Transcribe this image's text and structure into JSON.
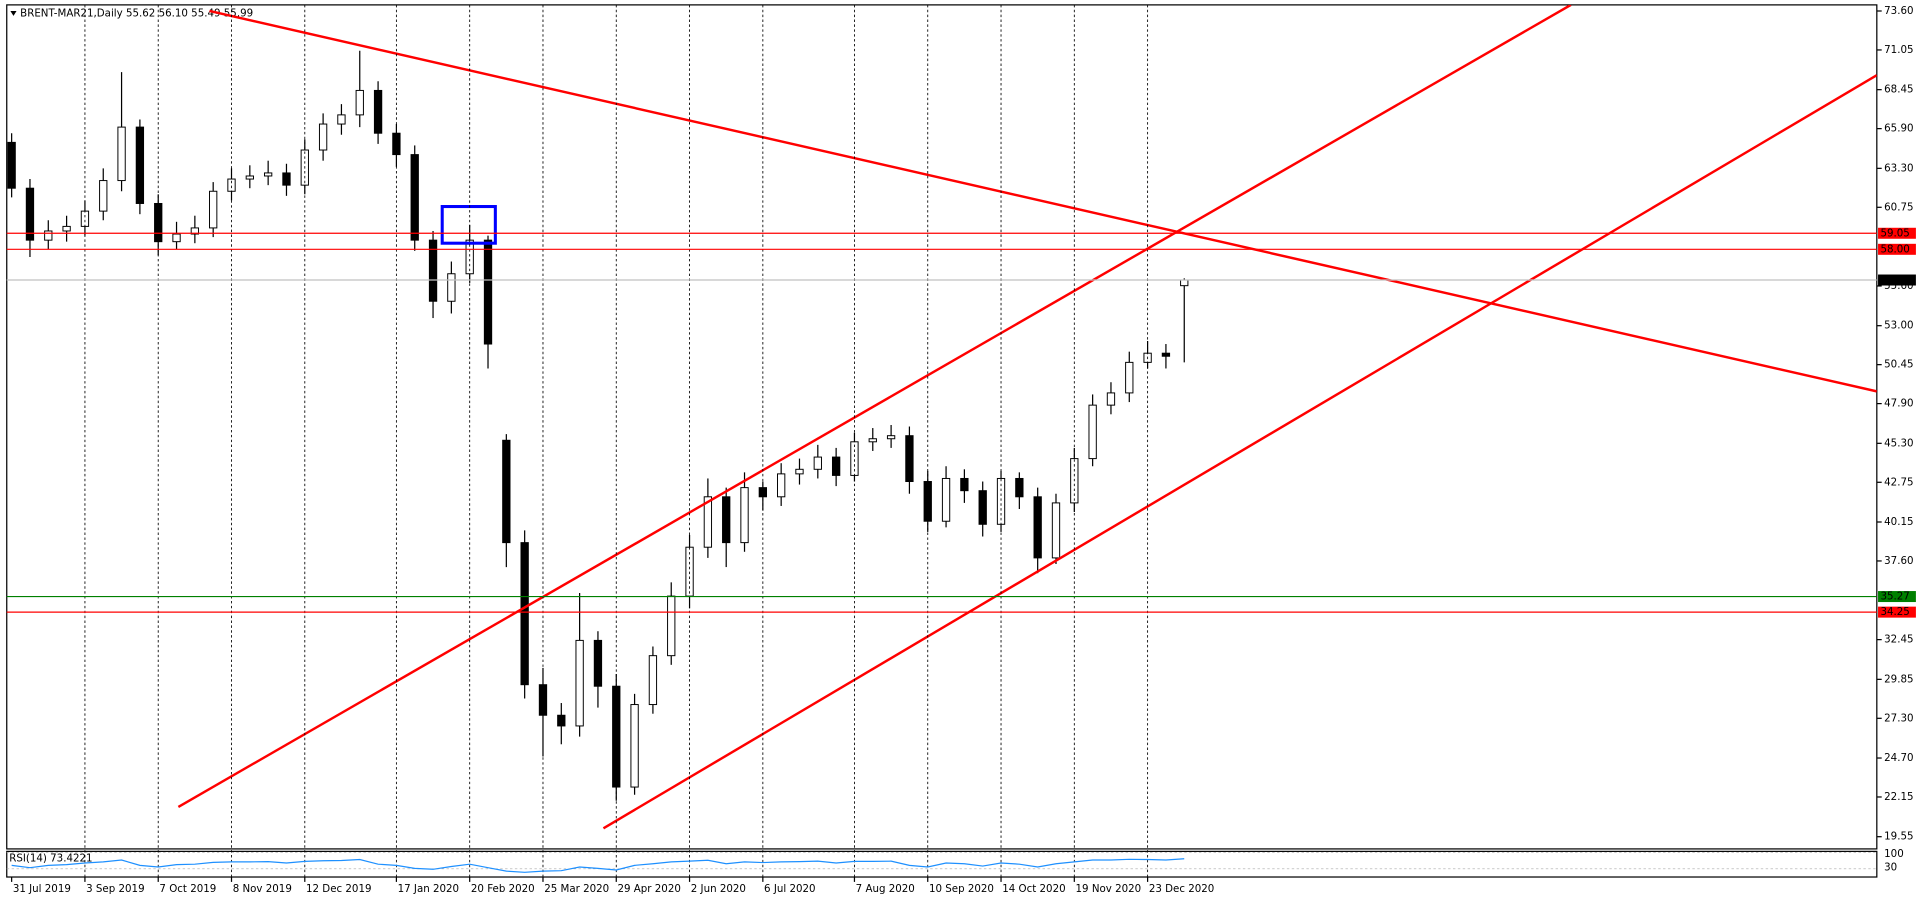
{
  "chart_data": {
    "type": "candlestick",
    "title": "BRENT-MAR21,Daily  55.62 56.10 55.49 55.99",
    "categories": [
      "31 Jul 2019",
      null,
      null,
      null,
      "3 Sep 2019",
      null,
      null,
      null,
      "7 Oct 2019",
      null,
      null,
      null,
      "8 Nov 2019",
      null,
      null,
      null,
      "12 Dec 2019",
      null,
      null,
      null,
      null,
      "17 Jan 2020",
      null,
      null,
      null,
      "20 Feb 2020",
      null,
      null,
      null,
      "25 Mar 2020",
      null,
      null,
      null,
      "29 Apr 2020",
      null,
      null,
      null,
      "2 Jun 2020",
      null,
      null,
      null,
      "6 Jul 2020",
      null,
      null,
      null,
      null,
      "7 Aug 2020",
      null,
      null,
      null,
      "10 Sep 2020",
      null,
      null,
      null,
      "14 Oct 2020",
      null,
      null,
      null,
      "19 Nov 2020",
      null,
      null,
      null,
      "23 Dec 2020",
      null,
      null
    ],
    "open": [
      65.0,
      62.0,
      58.6,
      59.2,
      59.5,
      60.5,
      62.5,
      66.0,
      61.0,
      58.5,
      59.0,
      59.4,
      61.8,
      62.6,
      62.8,
      63.0,
      62.2,
      64.5,
      66.2,
      66.8,
      68.4,
      65.6,
      64.2,
      58.6,
      54.6,
      56.4,
      58.6,
      45.5,
      38.8,
      29.5,
      27.5,
      26.8,
      32.4,
      29.4,
      22.8,
      28.2,
      31.4,
      35.3,
      38.5,
      41.8,
      38.8,
      42.4,
      41.8,
      43.3,
      43.6,
      44.4,
      43.2,
      45.4,
      45.6,
      45.8,
      42.8,
      40.2,
      43.0,
      42.2,
      40.0,
      43.0,
      41.8,
      37.8,
      41.4,
      44.3,
      47.8,
      48.6,
      50.6,
      51.2,
      55.62
    ],
    "high": [
      65.6,
      62.6,
      59.9,
      60.2,
      61.2,
      63.3,
      69.6,
      66.5,
      61.6,
      59.8,
      60.2,
      62.4,
      63.3,
      63.5,
      63.8,
      63.6,
      65.2,
      66.9,
      67.5,
      71.0,
      69.0,
      66.2,
      64.8,
      59.2,
      57.2,
      59.6,
      58.9,
      45.9,
      39.6,
      30.6,
      28.3,
      35.5,
      33.0,
      30.2,
      28.9,
      32.0,
      36.2,
      39.3,
      43.0,
      42.4,
      43.4,
      42.8,
      44.0,
      44.3,
      45.2,
      45.0,
      46.0,
      46.3,
      46.5,
      46.4,
      43.5,
      43.8,
      43.6,
      42.8,
      43.5,
      43.4,
      42.4,
      42.0,
      45.0,
      48.5,
      49.3,
      51.3,
      52.0,
      51.8,
      56.1
    ],
    "low": [
      61.4,
      57.5,
      58.0,
      58.5,
      58.9,
      59.9,
      61.8,
      60.3,
      57.6,
      58.0,
      58.4,
      58.8,
      61.2,
      62.0,
      62.2,
      61.5,
      61.6,
      63.8,
      65.5,
      66.0,
      64.9,
      63.4,
      57.9,
      53.5,
      53.8,
      55.8,
      50.2,
      37.2,
      28.6,
      24.8,
      25.6,
      26.1,
      28.0,
      21.9,
      22.3,
      27.6,
      30.8,
      34.5,
      37.8,
      37.2,
      38.2,
      40.9,
      41.2,
      42.6,
      43.0,
      42.5,
      42.8,
      44.8,
      45.0,
      42.0,
      39.5,
      39.8,
      41.4,
      39.2,
      39.5,
      41.0,
      36.8,
      37.4,
      40.8,
      43.8,
      47.2,
      48.0,
      50.2,
      50.2,
      50.6
    ],
    "close": [
      62.0,
      58.6,
      59.2,
      59.5,
      60.5,
      62.5,
      66.0,
      61.0,
      58.5,
      59.0,
      59.4,
      61.8,
      62.6,
      62.8,
      63.0,
      62.2,
      64.5,
      66.2,
      66.8,
      68.4,
      65.6,
      64.2,
      58.6,
      54.6,
      56.4,
      58.6,
      51.8,
      38.8,
      29.5,
      27.5,
      26.8,
      32.4,
      29.4,
      22.8,
      28.2,
      31.4,
      35.3,
      38.5,
      41.8,
      38.8,
      42.4,
      41.8,
      43.3,
      43.6,
      44.4,
      43.2,
      45.4,
      45.6,
      45.8,
      42.8,
      40.2,
      43.0,
      42.2,
      40.0,
      43.0,
      41.8,
      37.8,
      41.4,
      44.3,
      47.8,
      48.6,
      50.6,
      51.2,
      51.0,
      55.99
    ],
    "color": "#000000",
    "ylim": [
      18.75,
      74.0
    ],
    "yticks": [
      {
        "value": 73.6,
        "label": "73.60"
      },
      71.05,
      68.45,
      {
        "value": 65.9,
        "label": "65.90"
      },
      {
        "value": 63.3,
        "label": "63.30"
      },
      60.75,
      {
        "value": 55.6,
        "label": "55.60"
      },
      {
        "value": 53,
        "label": "53.00"
      },
      50.45,
      {
        "value": 47.9,
        "label": "47.90"
      },
      {
        "value": 45.3,
        "label": "45.30"
      },
      42.75,
      40.15,
      {
        "value": 37.6,
        "label": "37.60"
      },
      32.45,
      29.85,
      {
        "value": 27.3,
        "label": "27.30"
      },
      {
        "value": 24.7,
        "label": "24.70"
      },
      22.15,
      19.55
    ],
    "grid": true,
    "hlines": [
      {
        "value": 59.05,
        "color": "#ff0000"
      },
      {
        "value": 58,
        "label": "58.00",
        "color": "#ff0000"
      },
      {
        "value": 55.99,
        "color": "#c0c0c0"
      },
      {
        "value": 35.27,
        "color": "#008000"
      },
      {
        "value": 34.25,
        "color": "#ff0000"
      }
    ],
    "trendlines": [
      {
        "x": [
          10.8,
          101.8
        ],
        "y": [
          73.6,
          48.7
        ],
        "color": "#ff0000"
      },
      {
        "x": [
          9.1,
          85.1
        ],
        "y": [
          21.5,
          74.0
        ],
        "color": "#ff0000"
      },
      {
        "x": [
          32.3,
          101.8
        ],
        "y": [
          20.1,
          69.4
        ],
        "color": "#ff0000"
      }
    ],
    "box": {
      "x": [
        23.5,
        26.4
      ],
      "y": [
        58.4,
        60.8
      ],
      "color": "#0000ff"
    },
    "rsi": {
      "title": "RSI(14) 73.4221",
      "color": "#1e90ff",
      "ylim": [
        0,
        100
      ],
      "yticks": [
        100,
        30
      ],
      "values": [
        45,
        35,
        45,
        48,
        55,
        60,
        68,
        45,
        38,
        48,
        50,
        58,
        60,
        60,
        61,
        55,
        62,
        65,
        66,
        70,
        50,
        45,
        32,
        28,
        40,
        50,
        35,
        20,
        15,
        20,
        22,
        38,
        32,
        25,
        45,
        52,
        60,
        63,
        67,
        52,
        60,
        57,
        60,
        61,
        63,
        55,
        62,
        62,
        63,
        45,
        38,
        55,
        52,
        42,
        55,
        50,
        38,
        52,
        60,
        68,
        68,
        71,
        70,
        68,
        73.4221
      ]
    }
  }
}
